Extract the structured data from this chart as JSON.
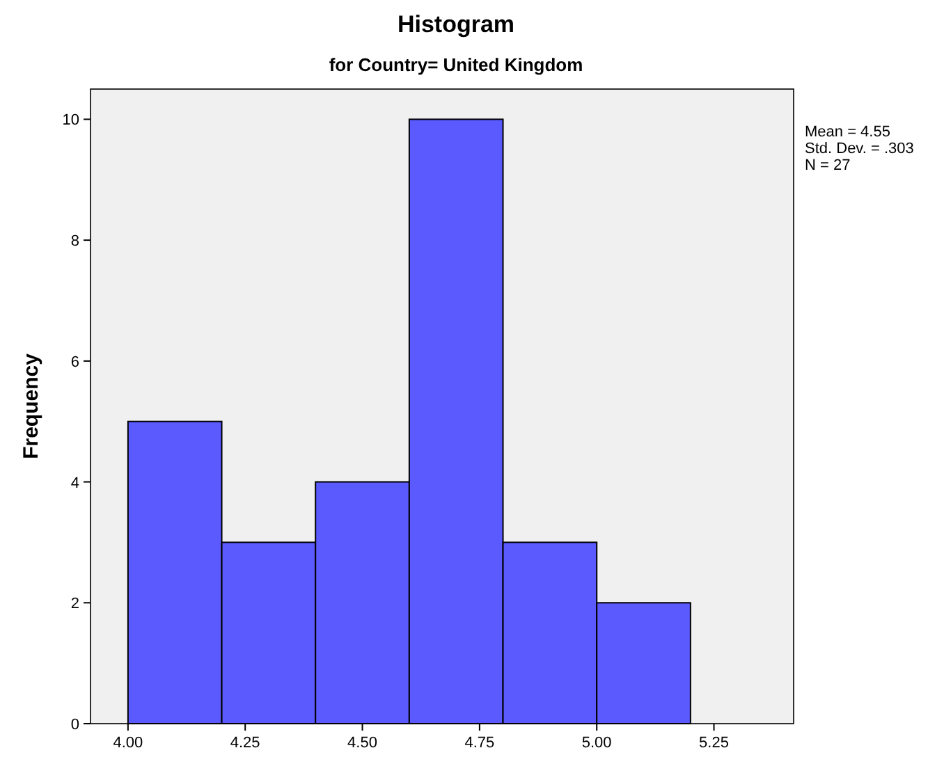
{
  "chart_data": {
    "type": "histogram",
    "title": "Histogram",
    "subtitle": "for Country= United Kingdom",
    "ylabel": "Frequency",
    "bins": [
      4.0,
      4.2,
      4.4,
      4.6,
      4.8,
      5.0,
      5.2
    ],
    "values": [
      5,
      3,
      4,
      10,
      3,
      2
    ],
    "color": "#5a5aff",
    "xlim": [
      3.92,
      5.42
    ],
    "xticks": [
      {
        "value": 4,
        "label": "4.00"
      },
      {
        "value": 4.25,
        "label": "4.25"
      },
      {
        "value": 4.5,
        "label": "4.50"
      },
      {
        "value": 4.75,
        "label": "4.75"
      },
      {
        "value": 5,
        "label": "5.00"
      },
      {
        "value": 5.25,
        "label": "5.25"
      }
    ],
    "ylim": [
      0,
      10.5
    ],
    "yticks": [
      0,
      2,
      4,
      6,
      8,
      10
    ],
    "annotations": [
      "Mean = 4.55",
      "Std. Dev. = .303",
      "N = 27"
    ],
    "grid": false
  }
}
